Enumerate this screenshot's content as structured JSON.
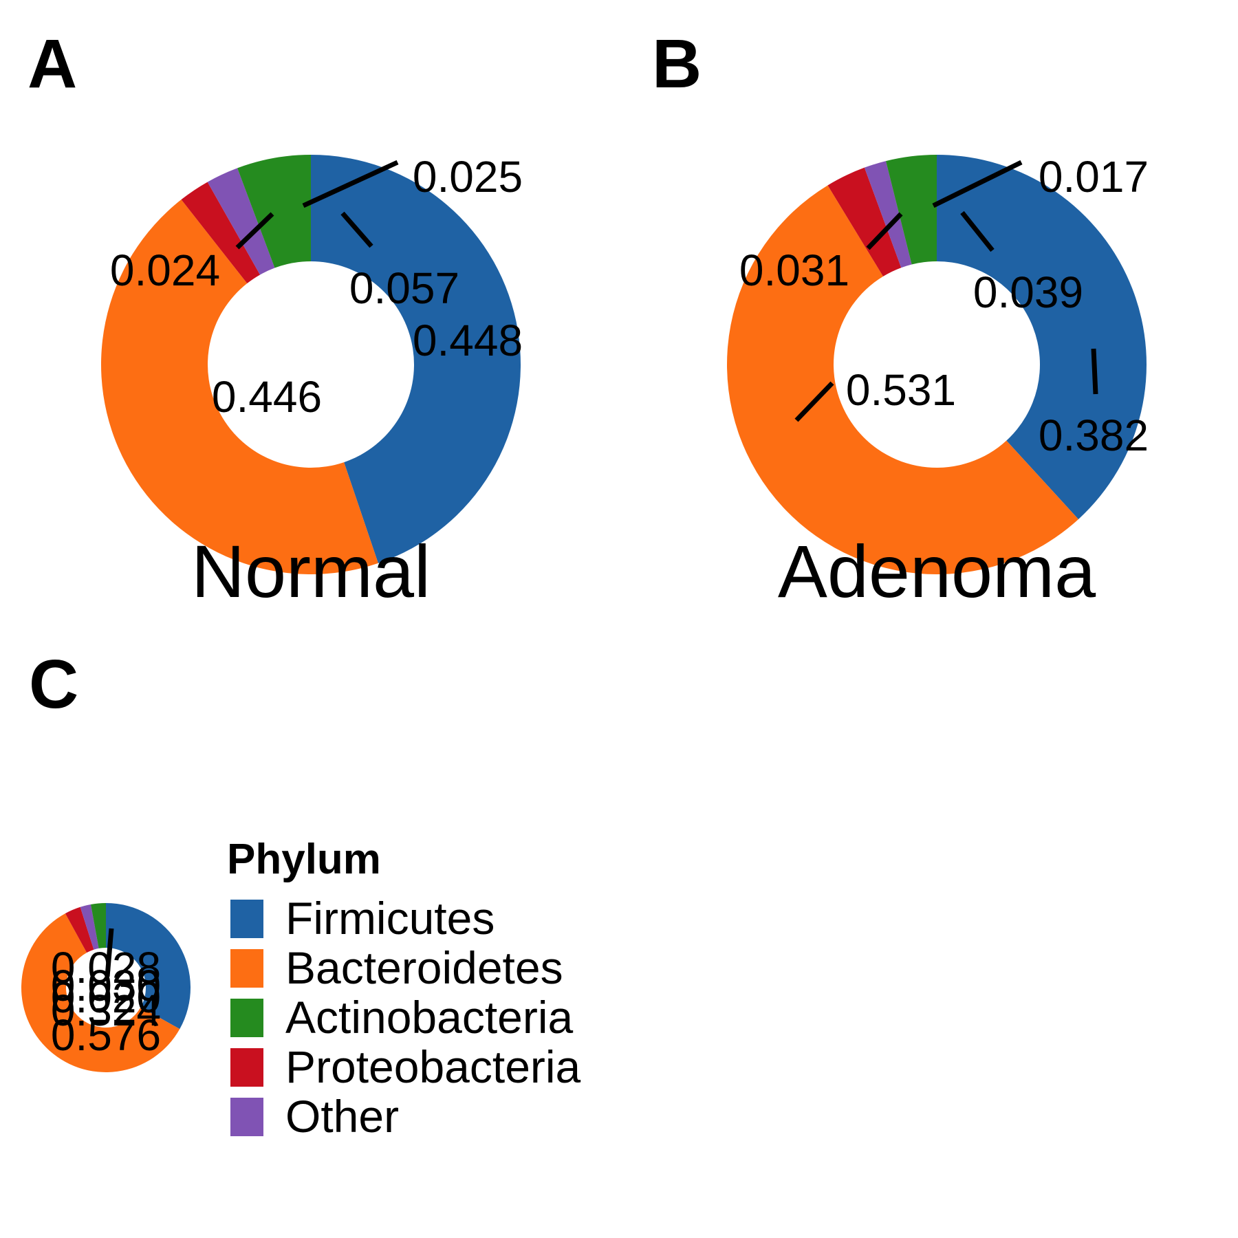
{
  "panels": {
    "a": "A",
    "b": "B",
    "c": "C"
  },
  "legend": {
    "title": "Phylum",
    "items": [
      {
        "name": "Firmicutes",
        "color": "#1f62a4"
      },
      {
        "name": "Bacteroidetes",
        "color": "#fd6e13"
      },
      {
        "name": "Actinobacteria",
        "color": "#258b1f"
      },
      {
        "name": "Proteobacteria",
        "color": "#c9101f"
      },
      {
        "name": "Other",
        "color": "#8053b4"
      }
    ]
  },
  "chart_data": [
    {
      "type": "pie",
      "variant": "donut",
      "panel": "A",
      "title": "Normal",
      "categories": [
        "Firmicutes",
        "Bacteroidetes",
        "Proteobacteria",
        "Other",
        "Actinobacteria"
      ],
      "values": [
        0.448,
        0.446,
        0.024,
        0.025,
        0.057
      ],
      "labels": [
        "0.448",
        "0.446",
        "0.024",
        "0.025",
        "0.057"
      ]
    },
    {
      "type": "pie",
      "variant": "donut",
      "panel": "B",
      "title": "Adenoma",
      "categories": [
        "Firmicutes",
        "Bacteroidetes",
        "Proteobacteria",
        "Other",
        "Actinobacteria"
      ],
      "values": [
        0.382,
        0.531,
        0.031,
        0.017,
        0.039
      ],
      "labels": [
        "0.382",
        "0.531",
        "0.031",
        "0.017",
        "0.039"
      ]
    },
    {
      "type": "pie",
      "variant": "donut",
      "panel": "C",
      "title": "",
      "categories": [
        "Firmicutes",
        "Bacteroidetes",
        "Proteobacteria",
        "Other",
        "Actinobacteria"
      ],
      "values": [
        0.324,
        0.576,
        0.03,
        0.02,
        0.028
      ],
      "labels": [
        "0.324",
        "0.576",
        "0.030",
        "0.020",
        "0.028"
      ]
    }
  ]
}
